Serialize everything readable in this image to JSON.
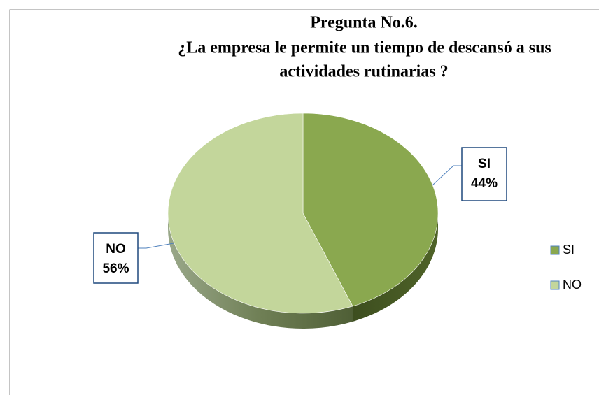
{
  "chart_data": {
    "type": "pie",
    "title": [
      "Pregunta No.6.",
      "¿La empresa le permite un tiempo de descansó a sus",
      "actividades rutinarias ?"
    ],
    "categories": [
      "SI",
      "NO"
    ],
    "values": [
      44,
      56
    ],
    "value_labels": [
      "44%",
      "56%"
    ],
    "colors": [
      "#8aa84f",
      "#c3d69b"
    ],
    "legend": "right"
  }
}
